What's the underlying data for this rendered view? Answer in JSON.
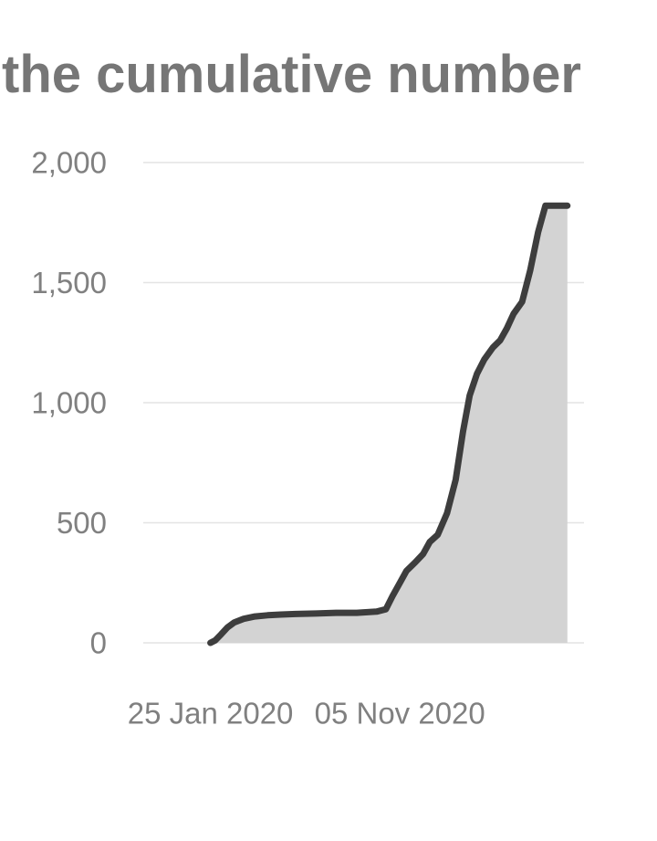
{
  "chart_data": {
    "type": "area",
    "title": "the cumulative number",
    "xlabel": "",
    "ylabel": "",
    "x_ticks": [
      "25 Jan 2020",
      "05 Nov 2020"
    ],
    "y_ticks": [
      "0",
      "500",
      "1,000",
      "1,500",
      "2,000"
    ],
    "ylim": [
      0,
      2000
    ],
    "xlim": [
      "2019-10-16",
      "2021-08-09"
    ],
    "grid": "horizontal",
    "colors": {
      "line": "#3d3d3d",
      "fill": "#d3d3d3",
      "grid": "#e4e4e4",
      "text": "#808080",
      "title": "#767676"
    },
    "series": [
      {
        "x": [
          "2020-01-25",
          "2020-02-01",
          "2020-02-10",
          "2020-02-20",
          "2020-03-01",
          "2020-03-15",
          "2020-04-01",
          "2020-04-20",
          "2020-05-10",
          "2020-06-01",
          "2020-07-01",
          "2020-08-01",
          "2020-09-01",
          "2020-10-01",
          "2020-10-15",
          "2020-10-25",
          "2020-11-05",
          "2020-11-15",
          "2020-11-28",
          "2020-12-10",
          "2020-12-20",
          "2021-01-01",
          "2021-01-15",
          "2021-01-28",
          "2021-02-08",
          "2021-02-18",
          "2021-03-01",
          "2021-03-12",
          "2021-03-25",
          "2021-04-05",
          "2021-04-15",
          "2021-04-25",
          "2021-05-08",
          "2021-05-20",
          "2021-06-01",
          "2021-06-12",
          "2021-06-24",
          "2021-07-05",
          "2021-07-15",
          "2021-07-22"
        ],
        "values": [
          0,
          10,
          35,
          65,
          85,
          100,
          110,
          115,
          118,
          120,
          122,
          125,
          125,
          130,
          140,
          195,
          250,
          300,
          335,
          370,
          420,
          450,
          540,
          680,
          880,
          1030,
          1120,
          1180,
          1230,
          1260,
          1310,
          1370,
          1420,
          1550,
          1710,
          1820,
          1820,
          1820,
          1820,
          1820
        ]
      }
    ]
  }
}
